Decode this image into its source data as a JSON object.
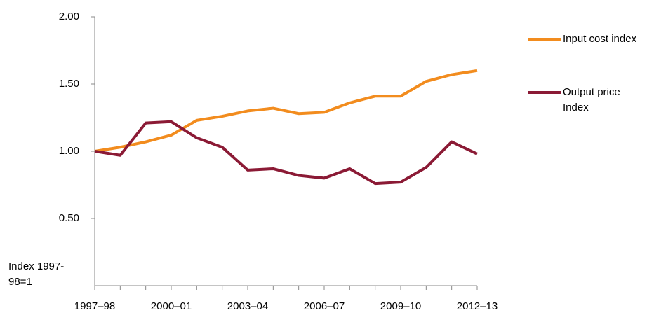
{
  "chart_data": {
    "type": "line",
    "ylabel": "Index 1997-98=1",
    "categories": [
      "1997–98",
      null,
      null,
      "2000–01",
      null,
      null,
      "2003–04",
      null,
      null,
      "2006–07",
      null,
      null,
      "2009–10",
      null,
      null,
      "2012–13"
    ],
    "series": [
      {
        "name": "Input cost index",
        "color": "#f28c1e",
        "values": [
          1.0,
          1.03,
          1.07,
          1.12,
          1.23,
          1.26,
          1.3,
          1.32,
          1.28,
          1.29,
          1.36,
          1.41,
          1.41,
          1.52,
          1.57,
          1.6
        ]
      },
      {
        "name": "Output price Index",
        "color": "#8b1a35",
        "values": [
          1.0,
          0.97,
          1.21,
          1.22,
          1.1,
          1.03,
          0.86,
          0.87,
          0.82,
          0.8,
          0.87,
          0.76,
          0.77,
          0.88,
          1.07,
          0.98
        ]
      }
    ],
    "ylim": [
      0,
      2
    ],
    "yticks": [
      {
        "value": 0.5,
        "label": "0.50"
      },
      {
        "value": 1,
        "label": "1.00"
      },
      {
        "value": 1.5,
        "label": "1.50"
      },
      {
        "value": 2,
        "label": "2.00"
      }
    ],
    "grid": false,
    "legend": "right"
  }
}
